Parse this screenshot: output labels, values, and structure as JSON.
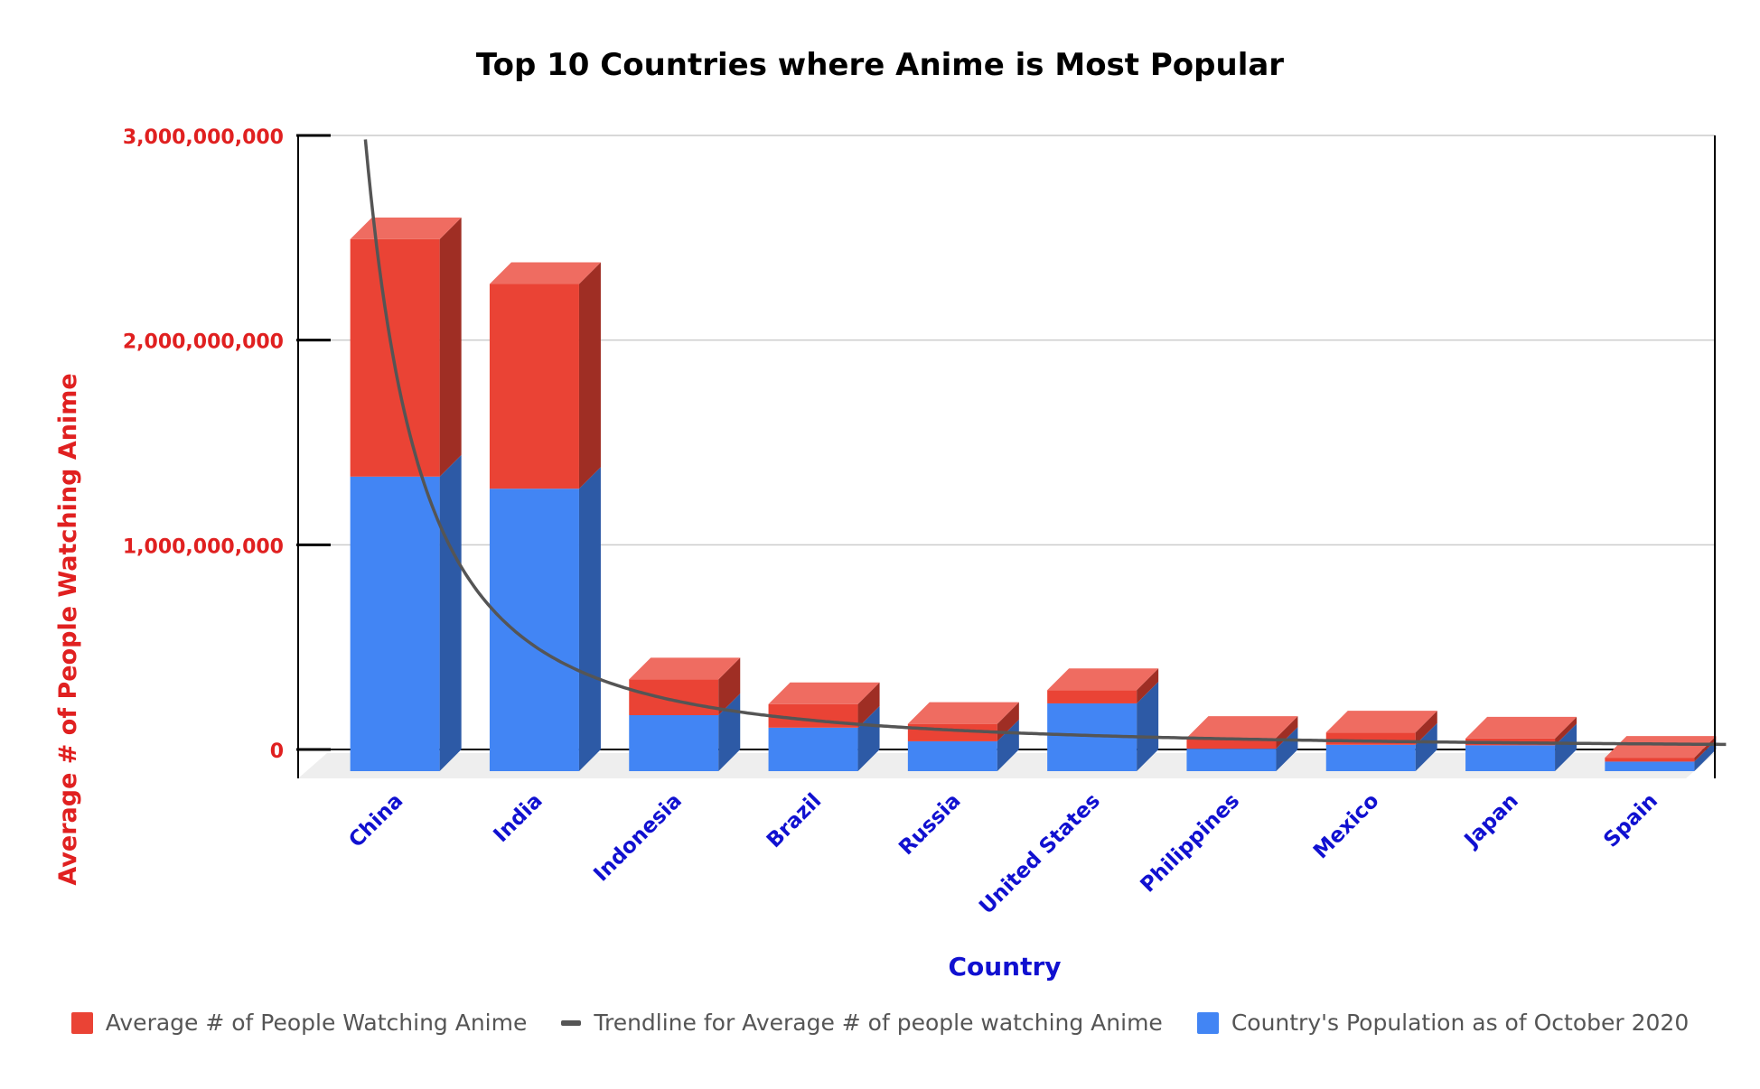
{
  "chart_data": {
    "type": "bar",
    "stacked": true,
    "three_d": true,
    "title": "Top 10 Countries where Anime is Most Popular",
    "xlabel": "Country",
    "ylabel": "Average # of People Watching Anime",
    "categories": [
      "China",
      "India",
      "Indonesia",
      "Brazil",
      "Russia",
      "United States",
      "Philippines",
      "Mexico",
      "Japan",
      "Spain"
    ],
    "series": [
      {
        "name": "Country's Population as of October 2020",
        "color": "#4285f4",
        "values": [
          1439000000,
          1380000000,
          273500000,
          212500000,
          145900000,
          331000000,
          109600000,
          128900000,
          126500000,
          46700000
        ]
      },
      {
        "name": "Average # of People Watching Anime",
        "color": "#ea4335",
        "values": [
          1160000000,
          1000000000,
          175000000,
          115000000,
          85000000,
          65000000,
          53000000,
          60000000,
          33000000,
          19000000
        ]
      }
    ],
    "trendline": {
      "name": "Trendline for Average # of people watching Anime",
      "color": "#555555"
    },
    "yticks": [
      0,
      1000000000,
      2000000000,
      3000000000
    ],
    "ytick_labels": [
      "0",
      "1,000,000,000",
      "2,000,000,000",
      "3,000,000,000"
    ],
    "ylim": [
      0,
      3000000000
    ],
    "grid": true,
    "legend_position": "bottom",
    "colors": {
      "axis_label_y": "#e02020",
      "axis_label_x": "#1010d0",
      "title": "#000000",
      "grid": "#cccccc",
      "floor": "#eeeeee"
    }
  }
}
